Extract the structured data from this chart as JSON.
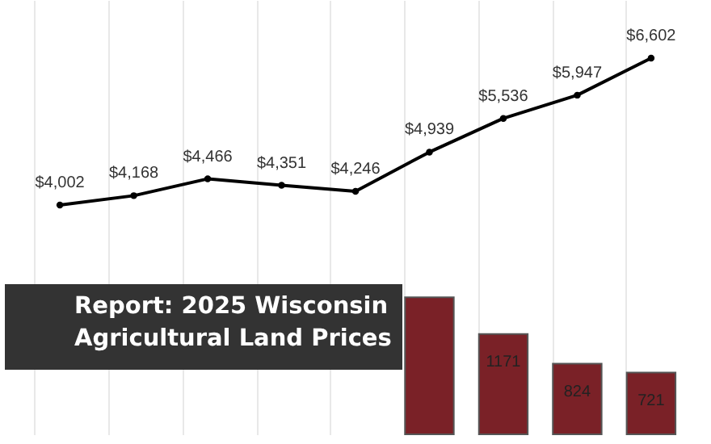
{
  "chart_data": [
    {
      "type": "line",
      "categories": [
        null,
        null,
        null,
        null,
        null,
        null,
        null,
        null,
        null
      ],
      "grid": true,
      "series": [
        {
          "color": "#000000",
          "marker": "circle",
          "line_style": "solid",
          "values": [
            4002,
            4168,
            4466,
            4351,
            4246,
            4939,
            5536,
            5947,
            6602
          ],
          "value_labels": [
            "$4,002",
            "$4,168",
            "$4,466",
            "$4,351",
            "$4,246",
            "$4,939",
            "$5,536",
            "$5,947",
            "$6,602"
          ]
        }
      ]
    },
    {
      "type": "bar",
      "title": "Report: 2025 Wisconsin Agricultural Land Prices",
      "categories": [
        null,
        null,
        null,
        null,
        null,
        null,
        null,
        null,
        null
      ],
      "grid": true,
      "series": [
        {
          "color": "#7a2127",
          "values": [
            null,
            null,
            null,
            null,
            null,
            1600,
            1171,
            824,
            721
          ],
          "value_labels": [
            null,
            null,
            null,
            null,
            null,
            null,
            "1171",
            "824",
            "721"
          ]
        }
      ]
    }
  ]
}
